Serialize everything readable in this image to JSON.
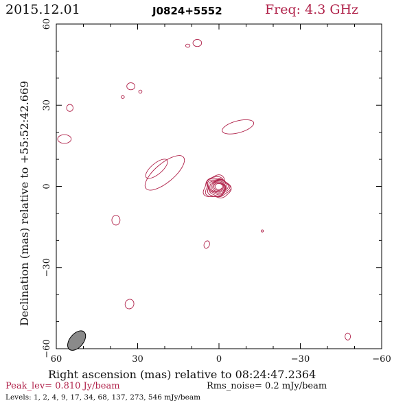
{
  "header": {
    "date": "2015.12.01",
    "source": "J0824+5552",
    "frequency": "Freq: 4.3 GHz"
  },
  "footer": {
    "peak_level": "Peak_lev=  0.810 Jy/beam",
    "rms_noise": "Rms_noise=  0.2 mJy/beam",
    "levels": "Levels:   1,   2,   4,   9,  17,  34,  68, 137, 273, 546 mJy/beam"
  },
  "colors": {
    "contour": "#b0224a",
    "beam": "#8a8a8a",
    "axes": "#000000"
  },
  "chart_data": {
    "type": "contour",
    "xlabel": "Right ascension (mas) relative to 08:24:47.2364",
    "ylabel": "Declination (mas) relative to +55:52:42.669",
    "xlim": [
      60,
      -60
    ],
    "ylim": [
      -60,
      60
    ],
    "xticks": [
      "60",
      "30",
      "0",
      "−30",
      "−60"
    ],
    "yticks": [
      "−60",
      "−30",
      "0",
      "30",
      "60"
    ],
    "core": {
      "ra": 0,
      "dec": 0,
      "levels_mjy": [
        1,
        2,
        4,
        9,
        17,
        34,
        68,
        137,
        273,
        546
      ]
    },
    "components": [
      {
        "ra": 20,
        "dec": 5,
        "ra_size": 9,
        "dec_size": 3.5,
        "angle": -40
      },
      {
        "ra": 23,
        "dec": 6.5,
        "ra_size": 5,
        "dec_size": 2,
        "angle": -40
      },
      {
        "ra": -7,
        "dec": 22,
        "ra_size": 6,
        "dec_size": 2.2,
        "angle": -15
      },
      {
        "ra": 8,
        "dec": 53,
        "ra_size": 1.6,
        "dec_size": 1.3,
        "angle": 0
      },
      {
        "ra": 11.5,
        "dec": 52,
        "ra_size": 0.8,
        "dec_size": 0.6,
        "angle": 0
      },
      {
        "ra": 32.5,
        "dec": 37,
        "ra_size": 1.5,
        "dec_size": 1.3,
        "angle": 0
      },
      {
        "ra": 29,
        "dec": 35,
        "ra_size": 0.6,
        "dec_size": 0.6,
        "angle": 0
      },
      {
        "ra": 35.5,
        "dec": 33,
        "ra_size": 0.6,
        "dec_size": 0.5,
        "angle": 0
      },
      {
        "ra": 55,
        "dec": 29,
        "ra_size": 1.2,
        "dec_size": 1.3,
        "angle": 0
      },
      {
        "ra": 57,
        "dec": 17.5,
        "ra_size": 2.5,
        "dec_size": 1.6,
        "angle": 0
      },
      {
        "ra": 38,
        "dec": -12.5,
        "ra_size": 1.5,
        "dec_size": 1.8,
        "angle": 0
      },
      {
        "ra": 4.5,
        "dec": -21.5,
        "ra_size": 1.0,
        "dec_size": 1.4,
        "angle": 20
      },
      {
        "ra": -16,
        "dec": -16.5,
        "ra_size": 0.4,
        "dec_size": 0.4,
        "angle": 0
      },
      {
        "ra": 33,
        "dec": -43.5,
        "ra_size": 1.6,
        "dec_size": 1.8,
        "angle": 20
      },
      {
        "ra": -47.5,
        "dec": -55.5,
        "ra_size": 1.0,
        "dec_size": 1.3,
        "angle": 0
      }
    ],
    "beam": {
      "ra": 52.5,
      "dec": -57,
      "major": 4.2,
      "minor": 2.5,
      "angle": 50
    }
  }
}
